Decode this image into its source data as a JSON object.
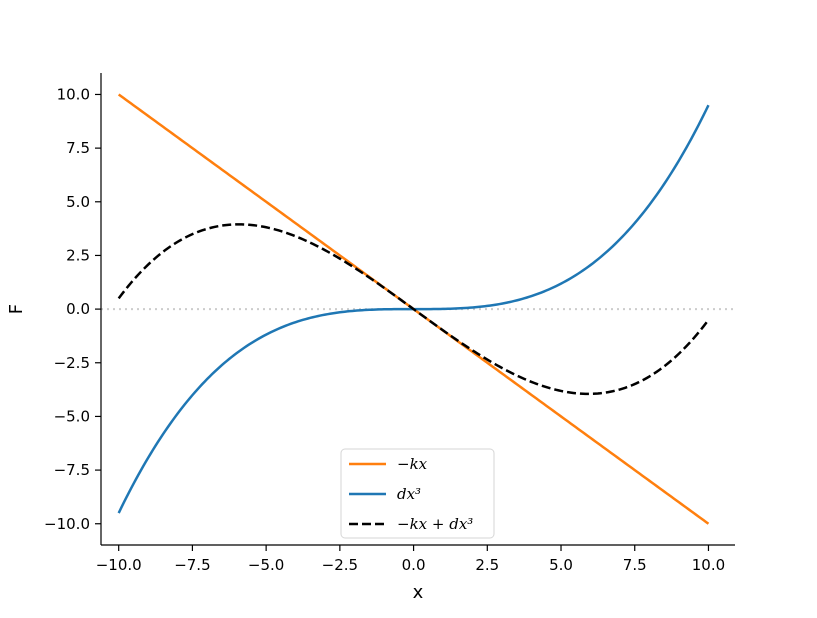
{
  "chart_data": {
    "type": "line",
    "title": "",
    "xlabel": "x",
    "ylabel": "F",
    "xlim": [
      -10.6,
      10.9
    ],
    "ylim": [
      -10.99,
      11.0
    ],
    "xticks": [
      -10.0,
      -7.5,
      -5.0,
      -2.5,
      0.0,
      2.5,
      5.0,
      7.5,
      10.0
    ],
    "yticks": [
      10.0,
      7.5,
      5.0,
      2.5,
      0.0,
      -2.5,
      -5.0,
      -7.5,
      -10.0
    ],
    "xtick_labels": [
      "−10.0",
      "−7.5",
      "−5.0",
      "−2.5",
      "0.0",
      "2.5",
      "5.0",
      "7.5",
      "10.0"
    ],
    "ytick_labels": [
      "10.0",
      "7.5",
      "5.0",
      "2.5",
      "0.0",
      "−2.5",
      "−5.0",
      "−7.5",
      "−10.0"
    ],
    "grid": false,
    "legend_position": "bottom-center",
    "reference_line": {
      "y": 0.0,
      "style": "dotted",
      "color": "#cccccc"
    },
    "series": [
      {
        "name": "−kx",
        "color": "#ff7f0e",
        "dash": "solid",
        "x": [
          -10,
          -8,
          -6,
          -4,
          -2,
          0,
          2,
          4,
          6,
          8,
          10
        ],
        "y": [
          10,
          8,
          6,
          4,
          2,
          0,
          -2,
          -4,
          -6,
          -8,
          -10
        ]
      },
      {
        "name": "dx³",
        "color": "#1f77b4",
        "dash": "solid",
        "x": [
          -10,
          -9,
          -8,
          -7,
          -6,
          -5,
          -4,
          -3,
          -2,
          -1,
          0,
          1,
          2,
          3,
          4,
          5,
          6,
          7,
          8,
          9,
          10
        ],
        "y": [
          -9.5,
          -6.93,
          -4.86,
          -3.26,
          -2.05,
          -1.19,
          -0.61,
          -0.26,
          -0.08,
          -0.01,
          0.0,
          0.01,
          0.08,
          0.26,
          0.61,
          1.19,
          2.05,
          3.26,
          4.86,
          6.93,
          9.5
        ]
      },
      {
        "name": "−kx + dx³",
        "color": "#000000",
        "dash": "dashed",
        "x": [
          -10,
          -9,
          -8,
          -7,
          -6,
          -5,
          -4,
          -3,
          -2,
          -1,
          0,
          1,
          2,
          3,
          4,
          5,
          6,
          7,
          8,
          9,
          10
        ],
        "y": [
          0.5,
          2.07,
          3.14,
          3.74,
          3.95,
          3.81,
          3.39,
          2.74,
          1.92,
          0.99,
          0.0,
          -0.99,
          -1.92,
          -2.74,
          -3.39,
          -3.81,
          -3.95,
          -3.74,
          -3.14,
          -2.07,
          -0.5
        ]
      }
    ]
  }
}
